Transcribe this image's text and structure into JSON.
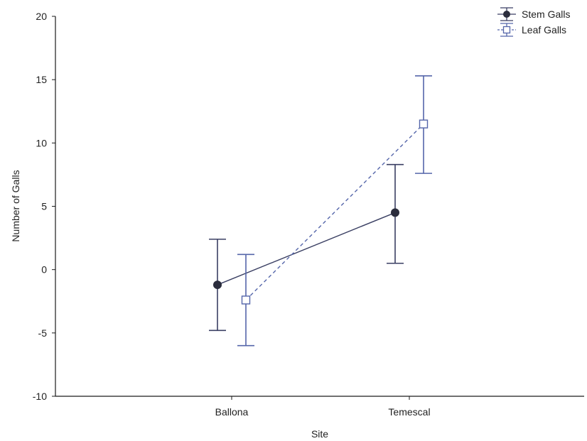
{
  "chart_data": {
    "type": "line",
    "title": "",
    "xlabel": "Site",
    "ylabel": "Number of Galls",
    "categories": [
      "Ballona",
      "Temescal"
    ],
    "ylim": [
      -10,
      20
    ],
    "yticks": [
      "20",
      "15",
      "10",
      "5",
      "0",
      "-5",
      "-10"
    ],
    "grid": false,
    "legend_position": "top-right",
    "series": [
      {
        "name": "Stem Galls",
        "marker": "filled-circle",
        "line_style": "solid",
        "color": "#3a3f63",
        "values": [
          -1.2,
          4.5
        ],
        "error_low": [
          -4.8,
          0.5
        ],
        "error_high": [
          2.4,
          8.3
        ]
      },
      {
        "name": "Leaf Galls",
        "marker": "open-square",
        "line_style": "dashed",
        "color": "#5566aa",
        "values": [
          -2.4,
          11.5
        ],
        "error_low": [
          -6.0,
          7.6
        ],
        "error_high": [
          1.2,
          15.3
        ]
      }
    ]
  }
}
